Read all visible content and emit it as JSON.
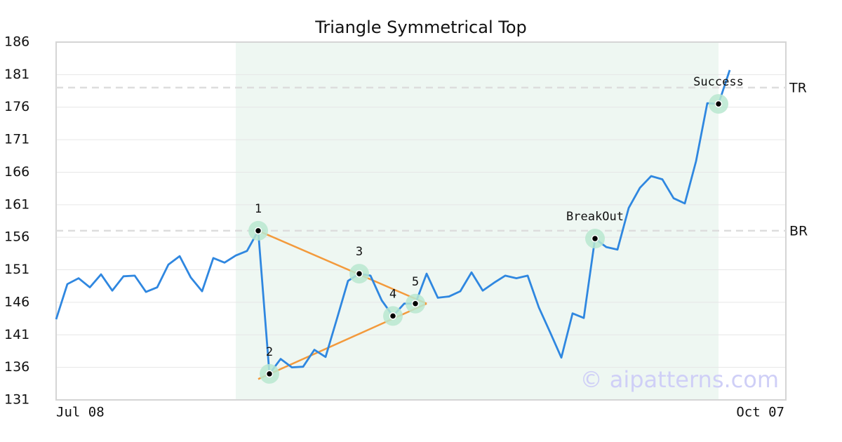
{
  "chart_data": {
    "type": "line",
    "title": "Triangle Symmetrical Top",
    "watermark": "© aipatterns.com",
    "color": "#2f87e0",
    "categories": [
      "Jul 08",
      null,
      null,
      null,
      null,
      null,
      null,
      null,
      null,
      null,
      null,
      null,
      null,
      null,
      null,
      null,
      null,
      null,
      null,
      null,
      null,
      null,
      null,
      null,
      null,
      null,
      null,
      null,
      null,
      null,
      null,
      null,
      null,
      null,
      null,
      null,
      null,
      null,
      null,
      null,
      null,
      null,
      null,
      null,
      null,
      null,
      null,
      null,
      null,
      null,
      null,
      null,
      null,
      null,
      null,
      null,
      null,
      null,
      null,
      null,
      "Oct 07"
    ],
    "values": [
      143.4,
      148.8,
      149.7,
      148.3,
      150.3,
      147.8,
      150.0,
      150.1,
      147.6,
      148.3,
      151.8,
      153.1,
      149.8,
      147.7,
      152.8,
      152.1,
      153.2,
      153.9,
      157.0,
      135.0,
      137.3,
      136.0,
      136.1,
      138.7,
      137.6,
      143.4,
      149.3,
      150.4,
      150.1,
      146.3,
      143.9,
      145.8,
      145.8,
      150.4,
      146.7,
      146.9,
      147.7,
      150.6,
      147.8,
      149.0,
      150.1,
      149.7,
      150.1,
      145.2,
      141.4,
      137.5,
      144.3,
      143.6,
      155.8,
      154.5,
      154.1,
      160.5,
      163.6,
      165.4,
      164.9,
      162.0,
      161.2,
      167.7,
      176.6,
      176.5,
      181.7
    ],
    "ylim": [
      131,
      186
    ],
    "yticks": [
      131,
      136,
      141,
      146,
      151,
      156,
      161,
      166,
      171,
      176,
      181,
      186
    ],
    "grid": true,
    "highlight_range": [
      16,
      59
    ],
    "highlight_color": "#eef7f2",
    "annotations": [
      {
        "label": "1",
        "index": 18
      },
      {
        "label": "2",
        "index": 19
      },
      {
        "label": "3",
        "index": 27
      },
      {
        "label": "4",
        "index": 30
      },
      {
        "label": "5",
        "index": 32
      },
      {
        "label": "BreakOut",
        "index": 48
      },
      {
        "label": "Success",
        "index": 59
      }
    ],
    "levels": [
      {
        "label": "TR",
        "value": 179.0
      },
      {
        "label": "BR",
        "value": 157.0
      }
    ],
    "trendline_color": "#f39a3c",
    "trendlines": [
      {
        "x": [
          18,
          33
        ],
        "y": [
          157.0,
          145.8
        ]
      },
      {
        "x": [
          18,
          33
        ],
        "y": [
          134.2,
          145.8
        ]
      }
    ]
  }
}
